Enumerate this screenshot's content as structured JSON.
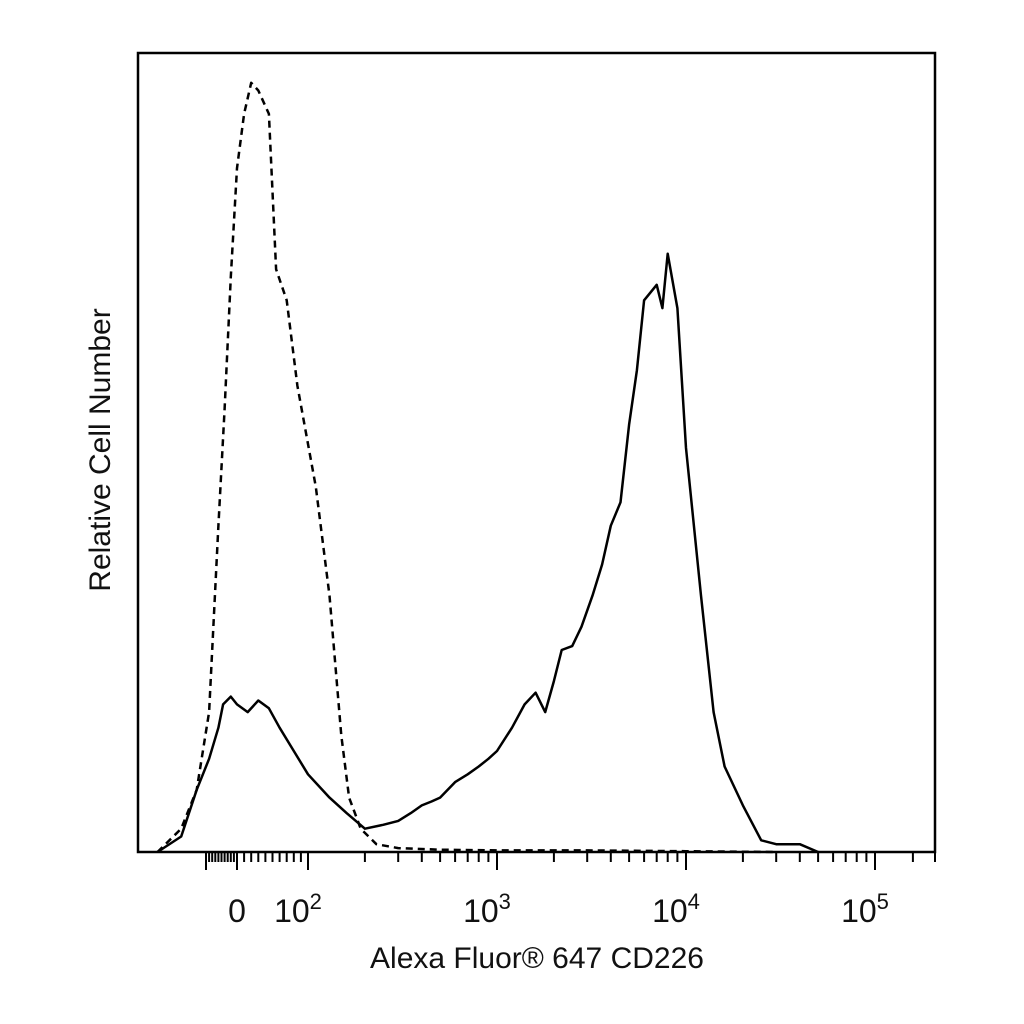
{
  "chart_data": {
    "type": "line",
    "title": "",
    "xlabel": "Alexa Fluor® 647 CD226",
    "ylabel": "Relative Cell Number",
    "x_scale": "biexponential",
    "x_tick_labels": [
      {
        "value": 0,
        "text": "0"
      },
      {
        "value": 100,
        "base": "10",
        "exp": "2"
      },
      {
        "value": 1000,
        "base": "10",
        "exp": "3"
      },
      {
        "value": 10000,
        "base": "10",
        "exp": "4"
      },
      {
        "value": 100000,
        "base": "10",
        "exp": "5"
      }
    ],
    "y_tick_labels": false,
    "grid": false,
    "legend": false,
    "colors": {
      "line": "#000000",
      "frame": "#000000",
      "background": "#ffffff"
    },
    "series": [
      {
        "style": "dashed",
        "x": [
          -250,
          -180,
          -130,
          -90,
          -60,
          -40,
          -20,
          0,
          10,
          20,
          30,
          45,
          55,
          70,
          85,
          110,
          130,
          150,
          165,
          190,
          230,
          300,
          500,
          1000,
          3000,
          10000,
          30000
        ],
        "y": [
          0,
          3,
          8,
          18,
          42,
          57,
          74,
          88,
          95,
          99,
          98,
          95,
          75,
          71,
          60,
          47,
          33,
          15,
          7,
          3,
          1,
          0.5,
          0.3,
          0.2,
          0.2,
          0.1,
          0
        ]
      },
      {
        "style": "solid",
        "x": [
          -250,
          -180,
          -130,
          -90,
          -60,
          -45,
          -20,
          0,
          15,
          30,
          45,
          60,
          80,
          100,
          130,
          160,
          200,
          250,
          300,
          350,
          400,
          450,
          500,
          600,
          700,
          800,
          900,
          1000,
          1200,
          1400,
          1600,
          1800,
          2000,
          2200,
          2500,
          2800,
          3200,
          3600,
          4000,
          4500,
          5000,
          5500,
          6000,
          7000,
          7500,
          8000,
          9000,
          10000,
          12000,
          14000,
          16000,
          20000,
          25000,
          30000,
          40000,
          50000
        ],
        "y": [
          0,
          2,
          8,
          12,
          16,
          19,
          20,
          19,
          18,
          19.5,
          18.5,
          16,
          13,
          10,
          7,
          5,
          3,
          3.5,
          4,
          5,
          6,
          6.5,
          7,
          9,
          10,
          11,
          12,
          13,
          16,
          19,
          20.5,
          18,
          22,
          26,
          26.5,
          29,
          33,
          37,
          42,
          45,
          55,
          62,
          71,
          73,
          70,
          77,
          70,
          52,
          33,
          18,
          11,
          6,
          1.5,
          1,
          1,
          0
        ]
      }
    ]
  }
}
